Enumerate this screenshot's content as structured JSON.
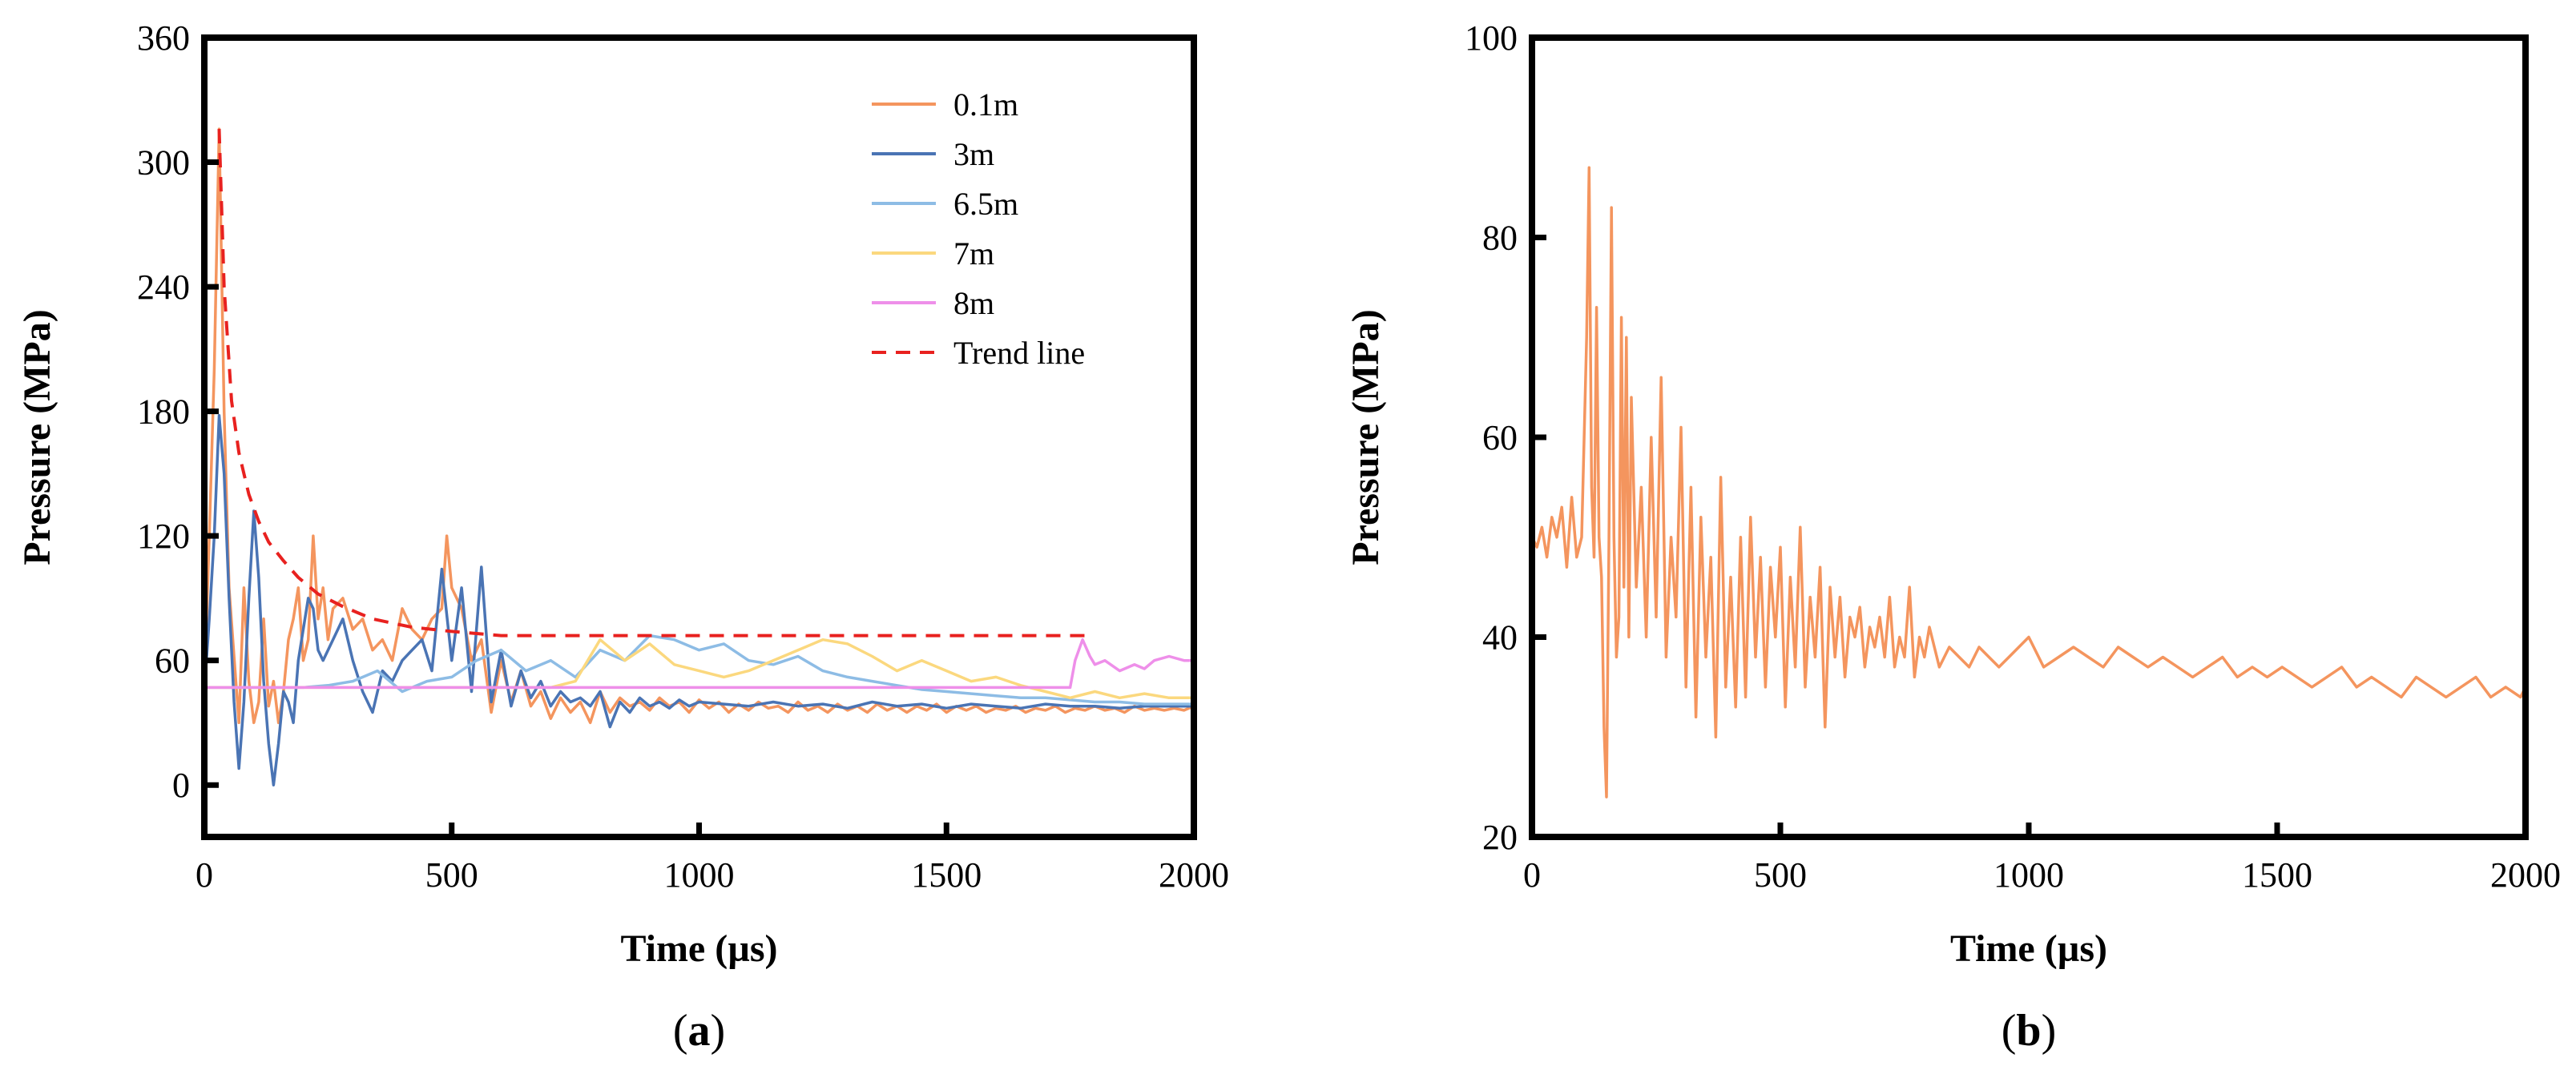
{
  "chart_data": [
    {
      "type": "line",
      "caption_letter": "a",
      "xlabel": "Time (µs)",
      "ylabel": "Pressure (MPa)",
      "xlim": [
        0,
        2000
      ],
      "ylim": [
        -25,
        360
      ],
      "xticks": [
        0,
        500,
        1000,
        1500,
        2000
      ],
      "yticks": [
        0,
        60,
        120,
        180,
        240,
        300,
        360
      ],
      "legend_position": "top-right",
      "series": [
        {
          "name": "0.1m",
          "color": "#F4955E",
          "style": "solid",
          "x": [
            0,
            10,
            20,
            30,
            40,
            50,
            60,
            70,
            80,
            90,
            100,
            110,
            120,
            130,
            140,
            150,
            160,
            170,
            180,
            190,
            200,
            210,
            220,
            230,
            240,
            250,
            260,
            280,
            300,
            320,
            340,
            360,
            380,
            400,
            420,
            440,
            460,
            480,
            490,
            500,
            520,
            540,
            560,
            580,
            600,
            620,
            640,
            660,
            680,
            700,
            720,
            740,
            760,
            780,
            800,
            820,
            840,
            860,
            880,
            900,
            920,
            940,
            960,
            980,
            1000,
            1020,
            1040,
            1060,
            1080,
            1100,
            1120,
            1140,
            1160,
            1180,
            1200,
            1220,
            1240,
            1260,
            1280,
            1300,
            1320,
            1340,
            1360,
            1380,
            1400,
            1420,
            1440,
            1460,
            1480,
            1500,
            1520,
            1540,
            1560,
            1580,
            1600,
            1620,
            1640,
            1660,
            1680,
            1700,
            1720,
            1740,
            1760,
            1780,
            1800,
            1820,
            1840,
            1860,
            1880,
            1900,
            1920,
            1940,
            1960,
            1980,
            2000
          ],
          "y": [
            47,
            120,
            200,
            316,
            180,
            95,
            62,
            30,
            95,
            50,
            30,
            40,
            80,
            38,
            50,
            30,
            45,
            70,
            80,
            95,
            60,
            70,
            120,
            80,
            95,
            70,
            85,
            90,
            75,
            80,
            65,
            70,
            60,
            85,
            75,
            70,
            80,
            85,
            120,
            95,
            85,
            60,
            70,
            35,
            60,
            40,
            55,
            38,
            45,
            32,
            42,
            35,
            40,
            30,
            45,
            35,
            42,
            38,
            40,
            36,
            42,
            38,
            40,
            35,
            41,
            37,
            40,
            35,
            39,
            36,
            40,
            37,
            38,
            35,
            40,
            36,
            38,
            35,
            39,
            36,
            38,
            35,
            39,
            36,
            38,
            35,
            38,
            36,
            39,
            35,
            38,
            36,
            38,
            35,
            37,
            36,
            38,
            35,
            37,
            36,
            38,
            35,
            37,
            36,
            38,
            36,
            37,
            35,
            38,
            36,
            37,
            36,
            37,
            36,
            38
          ]
        },
        {
          "name": "3m",
          "color": "#4A74B4",
          "style": "solid",
          "x": [
            0,
            10,
            20,
            30,
            40,
            50,
            60,
            70,
            80,
            90,
            100,
            110,
            120,
            130,
            140,
            150,
            160,
            170,
            180,
            190,
            200,
            210,
            220,
            230,
            240,
            260,
            280,
            300,
            320,
            340,
            360,
            380,
            400,
            420,
            440,
            460,
            480,
            500,
            520,
            540,
            560,
            580,
            600,
            620,
            640,
            660,
            680,
            700,
            720,
            740,
            760,
            780,
            800,
            820,
            840,
            860,
            880,
            900,
            920,
            940,
            960,
            980,
            1000,
            1050,
            1100,
            1150,
            1200,
            1250,
            1300,
            1350,
            1400,
            1450,
            1500,
            1550,
            1600,
            1650,
            1700,
            1750,
            1800,
            1850,
            1900,
            1950,
            2000
          ],
          "y": [
            45,
            80,
            120,
            178,
            150,
            90,
            40,
            8,
            40,
            90,
            132,
            100,
            50,
            20,
            0,
            20,
            45,
            40,
            30,
            60,
            75,
            90,
            85,
            65,
            60,
            70,
            80,
            60,
            45,
            35,
            55,
            50,
            60,
            65,
            70,
            55,
            104,
            60,
            95,
            45,
            105,
            40,
            65,
            38,
            55,
            42,
            50,
            38,
            45,
            40,
            42,
            38,
            45,
            28,
            40,
            35,
            42,
            38,
            40,
            37,
            41,
            38,
            40,
            39,
            38,
            40,
            38,
            39,
            37,
            40,
            38,
            39,
            37,
            39,
            38,
            37,
            39,
            38,
            38,
            37,
            38,
            38,
            38
          ]
        },
        {
          "name": "6.5m",
          "color": "#8DBCE5",
          "style": "solid",
          "x": [
            0,
            100,
            200,
            250,
            300,
            350,
            400,
            450,
            500,
            550,
            600,
            650,
            700,
            750,
            800,
            850,
            900,
            950,
            1000,
            1050,
            1100,
            1150,
            1200,
            1250,
            1300,
            1350,
            1400,
            1450,
            1500,
            1550,
            1600,
            1650,
            1700,
            1750,
            1800,
            1850,
            1900,
            1950,
            2000
          ],
          "y": [
            47,
            47,
            47,
            48,
            50,
            55,
            45,
            50,
            52,
            60,
            65,
            55,
            60,
            52,
            65,
            60,
            72,
            70,
            65,
            68,
            60,
            58,
            62,
            55,
            52,
            50,
            48,
            46,
            45,
            44,
            43,
            42,
            42,
            41,
            40,
            40,
            39,
            39,
            39
          ]
        },
        {
          "name": "7m",
          "color": "#FBD87E",
          "style": "solid",
          "x": [
            0,
            200,
            400,
            600,
            700,
            750,
            800,
            850,
            900,
            950,
            1000,
            1050,
            1100,
            1150,
            1200,
            1250,
            1300,
            1350,
            1400,
            1450,
            1500,
            1550,
            1600,
            1650,
            1700,
            1750,
            1800,
            1850,
            1900,
            1950,
            2000
          ],
          "y": [
            47,
            47,
            47,
            47,
            47,
            50,
            70,
            60,
            68,
            58,
            55,
            52,
            55,
            60,
            65,
            70,
            68,
            62,
            55,
            60,
            55,
            50,
            52,
            48,
            45,
            42,
            45,
            42,
            44,
            42,
            42
          ]
        },
        {
          "name": "8m",
          "color": "#EE8FE9",
          "style": "solid",
          "x": [
            0,
            200,
            400,
            600,
            800,
            1000,
            1200,
            1400,
            1600,
            1700,
            1750,
            1760,
            1775,
            1790,
            1800,
            1820,
            1850,
            1880,
            1900,
            1920,
            1950,
            1980,
            2000
          ],
          "y": [
            47,
            47,
            47,
            47,
            47,
            47,
            47,
            47,
            47,
            47,
            47,
            60,
            70,
            62,
            58,
            60,
            55,
            58,
            56,
            60,
            62,
            60,
            60
          ]
        },
        {
          "name": "Trend line",
          "color": "#E8211F",
          "style": "dashed",
          "x": [
            30,
            40,
            55,
            70,
            90,
            110,
            130,
            160,
            190,
            230,
            280,
            340,
            420,
            500,
            600,
            700,
            800,
            1000,
            1200,
            1400,
            1600,
            1780
          ],
          "y": [
            316,
            240,
            185,
            160,
            140,
            127,
            117,
            108,
            100,
            92,
            86,
            80,
            76,
            74,
            72,
            72,
            72,
            72,
            72,
            72,
            72,
            72
          ]
        }
      ]
    },
    {
      "type": "line",
      "caption_letter": "b",
      "xlabel": "Time (µs)",
      "ylabel": "Pressure (MPa)",
      "xlim": [
        0,
        2000
      ],
      "ylim": [
        20,
        100
      ],
      "xticks": [
        0,
        500,
        1000,
        1500,
        2000
      ],
      "yticks": [
        20,
        40,
        60,
        80,
        100
      ],
      "series": [
        {
          "name": "Pressure",
          "color": "#F4955E",
          "style": "solid",
          "x": [
            0,
            10,
            20,
            30,
            40,
            50,
            60,
            70,
            80,
            90,
            100,
            110,
            115,
            120,
            125,
            130,
            135,
            140,
            145,
            150,
            155,
            160,
            165,
            170,
            175,
            180,
            185,
            190,
            195,
            200,
            210,
            220,
            230,
            240,
            250,
            260,
            270,
            280,
            290,
            300,
            310,
            320,
            330,
            340,
            350,
            360,
            370,
            380,
            390,
            400,
            410,
            420,
            430,
            440,
            450,
            460,
            470,
            480,
            490,
            500,
            510,
            520,
            530,
            540,
            550,
            560,
            570,
            580,
            590,
            600,
            610,
            620,
            630,
            640,
            650,
            660,
            670,
            680,
            690,
            700,
            710,
            720,
            730,
            740,
            750,
            760,
            770,
            780,
            790,
            800,
            820,
            840,
            860,
            880,
            900,
            920,
            940,
            960,
            980,
            1000,
            1030,
            1060,
            1090,
            1120,
            1150,
            1180,
            1210,
            1240,
            1270,
            1300,
            1330,
            1360,
            1390,
            1420,
            1450,
            1480,
            1510,
            1540,
            1570,
            1600,
            1630,
            1660,
            1690,
            1720,
            1750,
            1780,
            1810,
            1840,
            1870,
            1900,
            1930,
            1960,
            1990,
            2000
          ],
          "y": [
            50,
            49,
            51,
            48,
            52,
            50,
            53,
            47,
            54,
            48,
            50,
            70,
            87,
            55,
            48,
            73,
            50,
            46,
            31,
            24,
            50,
            83,
            50,
            38,
            42,
            72,
            45,
            70,
            40,
            64,
            45,
            55,
            40,
            60,
            42,
            66,
            38,
            50,
            42,
            61,
            35,
            55,
            32,
            52,
            38,
            48,
            30,
            56,
            35,
            46,
            33,
            50,
            34,
            52,
            38,
            48,
            35,
            47,
            40,
            49,
            33,
            46,
            37,
            51,
            35,
            44,
            38,
            47,
            31,
            45,
            38,
            44,
            36,
            42,
            40,
            43,
            37,
            41,
            39,
            42,
            38,
            44,
            37,
            40,
            38,
            45,
            36,
            40,
            38,
            41,
            37,
            39,
            38,
            37,
            39,
            38,
            37,
            38,
            39,
            40,
            37,
            38,
            39,
            38,
            37,
            39,
            38,
            37,
            38,
            37,
            36,
            37,
            38,
            36,
            37,
            36,
            37,
            36,
            35,
            36,
            37,
            35,
            36,
            35,
            34,
            36,
            35,
            34,
            35,
            36,
            34,
            35,
            34,
            35
          ]
        }
      ]
    }
  ]
}
